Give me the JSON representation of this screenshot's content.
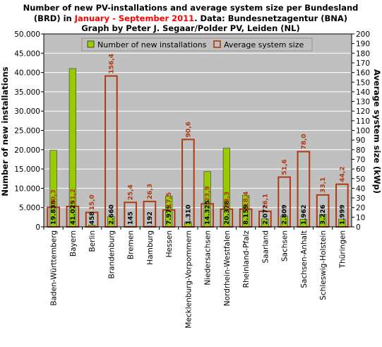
{
  "title": {
    "line1": "Number of new PV-installations and average system size per Bundesland",
    "line2_pre": "(BRD) in ",
    "line2_highlight": "January - September 2011",
    "line2_post": ". Data: Bundesnetzagentur (BNA)",
    "line3": "Graph by Peter J. Segaar/Polder PV, Leiden (NL)"
  },
  "colors": {
    "highlight": "#ff0000",
    "count_fill": "#99cc00",
    "avg_stroke": "#b03a10",
    "plot_bg": "#c0c0c0",
    "grid": "#ffffff"
  },
  "chart_data": {
    "type": "bar",
    "ylabel": "Number of new installations",
    "y2label": "Average system size (kWp)",
    "ylim": [
      0,
      50000
    ],
    "y2lim": [
      0,
      200
    ],
    "yticks": [
      "0",
      "5.000",
      "10.000",
      "15.000",
      "20.000",
      "25.000",
      "30.000",
      "35.000",
      "40.000",
      "45.000",
      "50.000"
    ],
    "y2ticks": [
      "0",
      "10",
      "20",
      "30",
      "40",
      "50",
      "60",
      "70",
      "80",
      "90",
      "100",
      "110",
      "120",
      "130",
      "140",
      "150",
      "160",
      "170",
      "180",
      "190",
      "200"
    ],
    "grid": true,
    "legend_position": "top",
    "categories": [
      "Baden-Württemberg",
      "Bayern",
      "Berlin",
      "Brandenburg",
      "Bremen",
      "Hamburg",
      "Hessen",
      "Mecklenburg-Vorpommern",
      "Niedersachsen",
      "Nordrhein-Westfalen",
      "Rheinland-Pfalz",
      "Saarland",
      "Sachsen",
      "Sachsen-Anhalt",
      "Schleswig-Holstein",
      "Thüringen"
    ],
    "series": [
      {
        "name": "Number of new installations",
        "axis": "left",
        "values": [
          19838,
          41025,
          458,
          2660,
          145,
          192,
          7979,
          1310,
          14325,
          20378,
          8159,
          2072,
          2809,
          1962,
          3226,
          1999
        ],
        "labels": [
          "19.838",
          "41.025",
          "458",
          "2.660",
          "145",
          "192",
          "7.979",
          "1.310",
          "14.325",
          "20.378",
          "8.159",
          "2.072",
          "2.809",
          "1.962",
          "3.226",
          "1.999"
        ]
      },
      {
        "name": "Average system size",
        "axis": "right",
        "values": [
          20.3,
          21.2,
          15.0,
          156.4,
          25.4,
          26.3,
          17.5,
          90.6,
          23.9,
          18.3,
          18.4,
          16.1,
          51.6,
          78.0,
          33.1,
          44.2
        ],
        "labels": [
          "20,3",
          "21,2",
          "15,0",
          "156,4",
          "25,4",
          "26,3",
          "17,5",
          "90,6",
          "23,9",
          "18,3",
          "18,4",
          "16,1",
          "51,6",
          "78,0",
          "33,1",
          "44,2"
        ]
      }
    ]
  }
}
